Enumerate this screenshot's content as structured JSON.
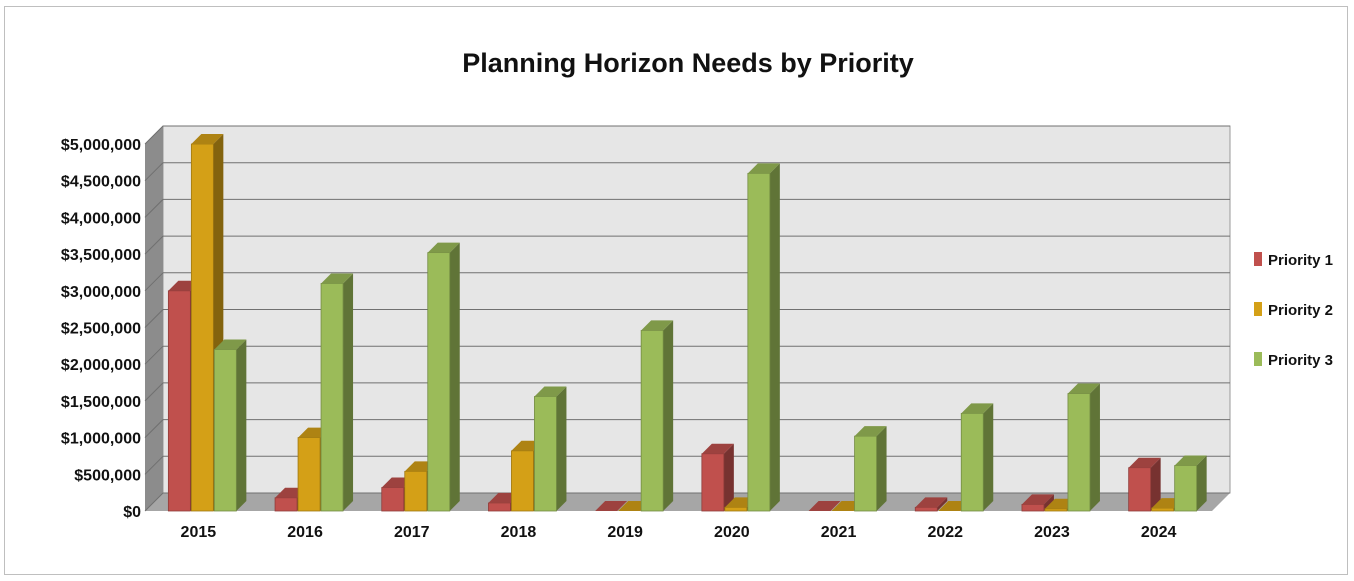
{
  "chart_data": {
    "type": "bar",
    "title": "Planning Horizon Needs by Priority",
    "xlabel": "",
    "ylabel": "",
    "categories": [
      "2015",
      "2016",
      "2017",
      "2018",
      "2019",
      "2020",
      "2021",
      "2022",
      "2023",
      "2024"
    ],
    "series": [
      {
        "name": "Priority 1",
        "color": "#c0504d",
        "values": [
          3000000,
          180000,
          320000,
          110000,
          0,
          780000,
          0,
          50000,
          90000,
          590000
        ]
      },
      {
        "name": "Priority 2",
        "color": "#d4a017",
        "values": [
          5000000,
          1000000,
          540000,
          820000,
          0,
          50000,
          0,
          0,
          30000,
          40000
        ]
      },
      {
        "name": "Priority 3",
        "color": "#9bbb59",
        "values": [
          2200000,
          3100000,
          3520000,
          1560000,
          2460000,
          4600000,
          1020000,
          1330000,
          1600000,
          620000
        ]
      }
    ],
    "ylim": [
      0,
      5000000
    ],
    "yticks": [
      "$0",
      "$500,000",
      "$1,000,000",
      "$1,500,000",
      "$2,000,000",
      "$2,500,000",
      "$3,000,000",
      "$3,500,000",
      "$4,000,000",
      "$4,500,000",
      "$5,000,000"
    ],
    "grid": true,
    "legend": "right"
  }
}
